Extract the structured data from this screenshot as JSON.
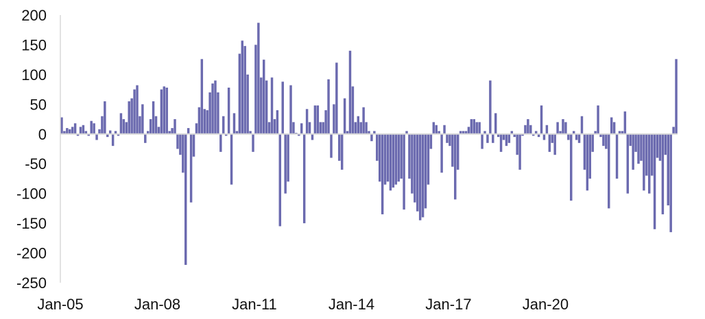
{
  "chart_data": {
    "type": "bar",
    "color": "#6b6aaf",
    "ylim": [
      -250,
      200
    ],
    "y_ticks": [
      "200",
      "150",
      "100",
      "50",
      "0",
      "-50",
      "-100",
      "-150",
      "-200",
      "-250"
    ],
    "y_tick_values": [
      200,
      150,
      100,
      50,
      0,
      -50,
      -100,
      -150,
      -200,
      -250
    ],
    "x_ticks": [
      "Jan-05",
      "Jan-08",
      "Jan-11",
      "Jan-14",
      "Jan-17",
      "Jan-20"
    ],
    "x_tick_index": [
      0,
      36,
      72,
      108,
      144,
      180
    ],
    "grid": false,
    "legend": "none",
    "start": "Jan-05",
    "frequency": "monthly",
    "values": [
      28,
      5,
      10,
      8,
      12,
      18,
      -3,
      12,
      15,
      5,
      -3,
      22,
      18,
      -10,
      8,
      30,
      55,
      -5,
      6,
      -20,
      5,
      -3,
      35,
      25,
      20,
      55,
      60,
      75,
      82,
      30,
      50,
      -15,
      5,
      25,
      55,
      30,
      12,
      75,
      80,
      78,
      5,
      10,
      25,
      -25,
      -35,
      -65,
      -220,
      10,
      -115,
      -38,
      18,
      45,
      126,
      42,
      40,
      70,
      85,
      90,
      70,
      -30,
      30,
      -3,
      78,
      -85,
      35,
      5,
      135,
      157,
      148,
      100,
      5,
      -30,
      150,
      187,
      95,
      125,
      90,
      20,
      95,
      25,
      40,
      -155,
      88,
      -100,
      -80,
      82,
      20,
      2,
      -3,
      18,
      -150,
      42,
      20,
      -10,
      48,
      48,
      20,
      20,
      40,
      92,
      -40,
      50,
      120,
      -45,
      -60,
      60,
      5,
      140,
      80,
      20,
      30,
      20,
      45,
      20,
      5,
      -12,
      5,
      -45,
      -80,
      -135,
      -85,
      -80,
      -95,
      -90,
      -85,
      -80,
      -75,
      -127,
      5,
      -75,
      -100,
      -115,
      -130,
      -145,
      -140,
      -125,
      -85,
      -25,
      20,
      15,
      5,
      -65,
      15,
      -15,
      -20,
      -55,
      -110,
      -60,
      5,
      5,
      5,
      12,
      25,
      25,
      20,
      20,
      -25,
      5,
      -15,
      90,
      -15,
      35,
      -5,
      -30,
      -10,
      -20,
      -15,
      5,
      -5,
      -35,
      -60,
      -3,
      15,
      25,
      15,
      -3,
      5,
      -5,
      48,
      -10,
      15,
      -30,
      -15,
      -35,
      20,
      5,
      25,
      20,
      -10,
      -112,
      5,
      -10,
      -15,
      30,
      -60,
      -95,
      -75,
      -30,
      5,
      48,
      -5,
      -20,
      -25,
      -125,
      28,
      20,
      -75,
      5,
      5,
      38,
      -100,
      -20,
      -60,
      -30,
      -50,
      -45,
      -95,
      -70,
      -100,
      -70,
      -160,
      -40,
      -45,
      -135,
      -35,
      -120,
      -165,
      12,
      126
    ]
  }
}
